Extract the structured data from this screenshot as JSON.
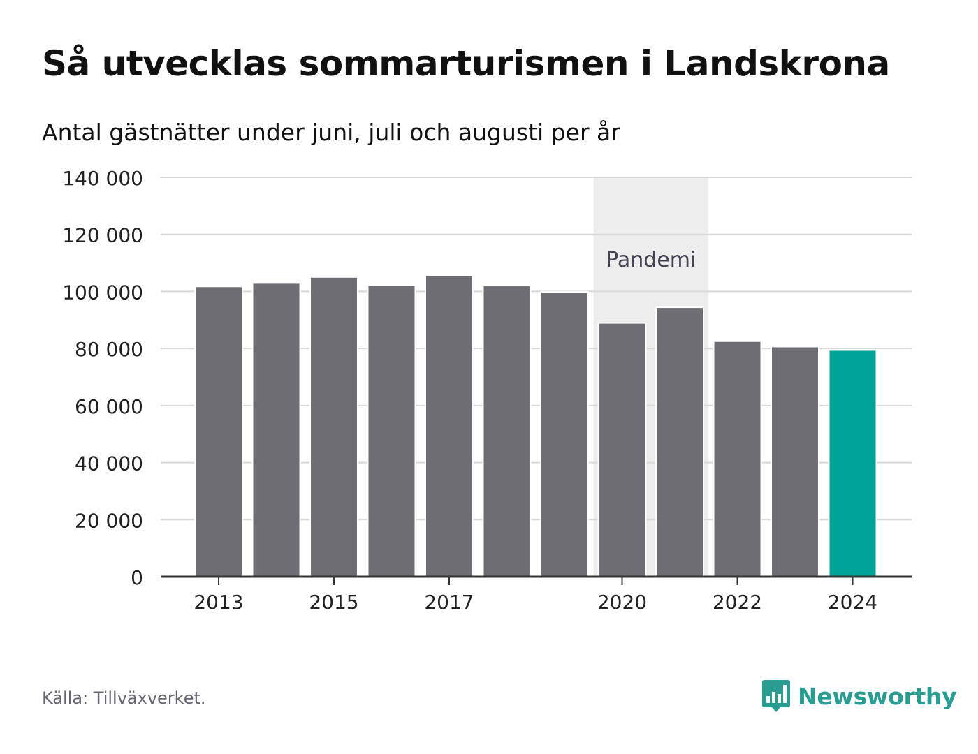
{
  "chart_data": {
    "type": "bar",
    "title": "Så utvecklas sommarturismen i Landskrona",
    "subtitle": "Antal gästnätter under juni, juli och augusti per år",
    "categories": [
      "2013",
      "2014",
      "2015",
      "2016",
      "2017",
      "2018",
      "2019",
      "2020",
      "2021",
      "2022",
      "2023",
      "2024"
    ],
    "values": [
      101500,
      102700,
      104800,
      102000,
      105400,
      101800,
      99600,
      88700,
      94200,
      82300,
      80400,
      79200
    ],
    "x_tick_labels": [
      "2013",
      "2015",
      "2017",
      "2020",
      "2022",
      "2024"
    ],
    "ylim": [
      0,
      140000
    ],
    "yticks": [
      0,
      20000,
      40000,
      60000,
      80000,
      100000,
      120000,
      140000
    ],
    "ytick_labels": [
      "0",
      "20 000",
      "40 000",
      "60 000",
      "80 000",
      "100 000",
      "120 000",
      "140 000"
    ],
    "highlight_category": "2024",
    "bar_color": "#6e6d73",
    "highlight_color": "#00a398",
    "annotation": {
      "label": "Pandemi",
      "from": "2020",
      "to": "2021",
      "color": "#ededed"
    },
    "grid": true,
    "xlabel": "",
    "ylabel": ""
  },
  "footer": {
    "source": "Källa: Tillväxverket.",
    "brand": "Newsworthy",
    "brand_color": "#2a9d93",
    "brand_icon": "newsworthy-bar-chart-icon"
  }
}
